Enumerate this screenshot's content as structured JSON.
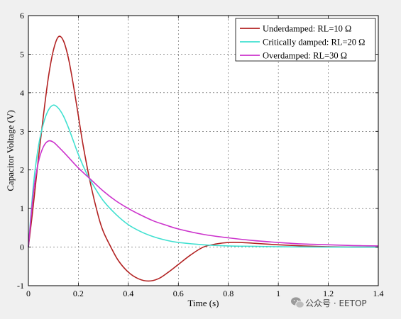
{
  "chart_data": {
    "type": "line",
    "title": "",
    "xlabel": "Time (s)",
    "ylabel": "Capacitor Voltage (V)",
    "xlim": [
      0,
      1.4
    ],
    "ylim": [
      -1,
      6
    ],
    "xticks": [
      "0",
      "0.2",
      "0.4",
      "0.6",
      "0.8",
      "1",
      "1.2",
      "1.4"
    ],
    "yticks": [
      "-1",
      "0",
      "1",
      "2",
      "3",
      "4",
      "5",
      "6"
    ],
    "grid": true,
    "legend_position": "top-right",
    "series": [
      {
        "name": "Underdamped: RL=10 Ω",
        "color": "#b22222",
        "points": [
          [
            0,
            0
          ],
          [
            0.02,
            1.1
          ],
          [
            0.04,
            2.3
          ],
          [
            0.06,
            3.4
          ],
          [
            0.08,
            4.4
          ],
          [
            0.1,
            5.1
          ],
          [
            0.12,
            5.45
          ],
          [
            0.14,
            5.35
          ],
          [
            0.16,
            4.9
          ],
          [
            0.18,
            4.2
          ],
          [
            0.2,
            3.4
          ],
          [
            0.22,
            2.6
          ],
          [
            0.25,
            1.6
          ],
          [
            0.28,
            0.8
          ],
          [
            0.3,
            0.4
          ],
          [
            0.33,
            0.0
          ],
          [
            0.36,
            -0.35
          ],
          [
            0.4,
            -0.65
          ],
          [
            0.44,
            -0.82
          ],
          [
            0.48,
            -0.88
          ],
          [
            0.52,
            -0.82
          ],
          [
            0.56,
            -0.65
          ],
          [
            0.6,
            -0.45
          ],
          [
            0.65,
            -0.2
          ],
          [
            0.7,
            0.0
          ],
          [
            0.75,
            0.08
          ],
          [
            0.8,
            0.12
          ],
          [
            0.85,
            0.12
          ],
          [
            0.9,
            0.1
          ],
          [
            1.0,
            0.06
          ],
          [
            1.1,
            0.03
          ],
          [
            1.2,
            0.01
          ],
          [
            1.3,
            0.0
          ],
          [
            1.4,
            0.0
          ]
        ]
      },
      {
        "name": "Critically damped: RL=20 Ω",
        "color": "#40e0d0",
        "points": [
          [
            0,
            0
          ],
          [
            0.02,
            1.6
          ],
          [
            0.04,
            2.6
          ],
          [
            0.06,
            3.2
          ],
          [
            0.08,
            3.55
          ],
          [
            0.1,
            3.68
          ],
          [
            0.12,
            3.6
          ],
          [
            0.14,
            3.4
          ],
          [
            0.16,
            3.1
          ],
          [
            0.18,
            2.75
          ],
          [
            0.2,
            2.4
          ],
          [
            0.23,
            1.95
          ],
          [
            0.26,
            1.6
          ],
          [
            0.3,
            1.2
          ],
          [
            0.35,
            0.85
          ],
          [
            0.4,
            0.58
          ],
          [
            0.45,
            0.4
          ],
          [
            0.5,
            0.27
          ],
          [
            0.55,
            0.18
          ],
          [
            0.6,
            0.12
          ],
          [
            0.7,
            0.06
          ],
          [
            0.8,
            0.03
          ],
          [
            0.9,
            0.02
          ],
          [
            1.0,
            0.01
          ],
          [
            1.2,
            0.0
          ],
          [
            1.4,
            0.0
          ]
        ]
      },
      {
        "name": "Overdamped: RL=30 Ω",
        "color": "#cc33cc",
        "points": [
          [
            0,
            0
          ],
          [
            0.02,
            1.4
          ],
          [
            0.04,
            2.2
          ],
          [
            0.06,
            2.6
          ],
          [
            0.08,
            2.75
          ],
          [
            0.1,
            2.72
          ],
          [
            0.12,
            2.6
          ],
          [
            0.15,
            2.4
          ],
          [
            0.2,
            2.05
          ],
          [
            0.25,
            1.75
          ],
          [
            0.3,
            1.45
          ],
          [
            0.35,
            1.2
          ],
          [
            0.4,
            1.0
          ],
          [
            0.45,
            0.83
          ],
          [
            0.5,
            0.68
          ],
          [
            0.55,
            0.57
          ],
          [
            0.6,
            0.47
          ],
          [
            0.7,
            0.33
          ],
          [
            0.8,
            0.24
          ],
          [
            0.9,
            0.17
          ],
          [
            1.0,
            0.12
          ],
          [
            1.1,
            0.08
          ],
          [
            1.2,
            0.06
          ],
          [
            1.3,
            0.04
          ],
          [
            1.4,
            0.03
          ]
        ]
      }
    ]
  },
  "watermark": {
    "text": "公众号 · EETOP",
    "icon": "wechat-icon"
  }
}
